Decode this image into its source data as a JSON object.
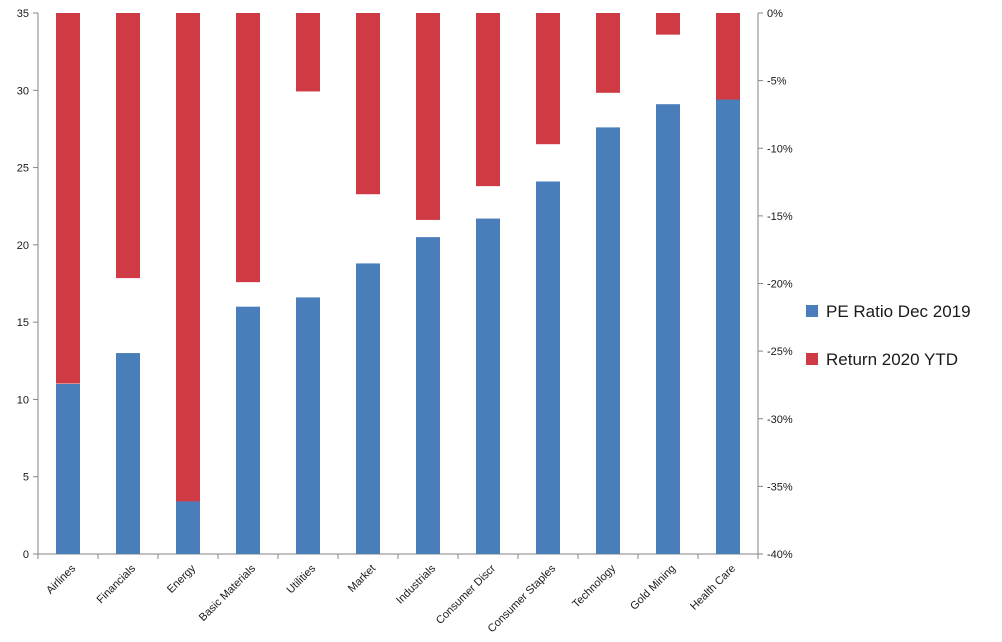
{
  "chart_data": {
    "type": "bar",
    "title": "",
    "xlabel": "",
    "categories": [
      "Airlines",
      "Financials",
      "Energy",
      "Basic Materials",
      "Utilities",
      "Market",
      "Industrials",
      "Consumer Discr",
      "Consumer Staples",
      "Technology",
      "Gold Mining",
      "Health Care"
    ],
    "series": [
      {
        "name": "PE Ratio Dec 2019",
        "axis": "left",
        "color": "#4a7ebb",
        "values": [
          11.0,
          13.0,
          3.4,
          16.0,
          16.6,
          18.8,
          20.5,
          21.7,
          24.1,
          27.6,
          29.1,
          29.4
        ]
      },
      {
        "name": "Return 2020 YTD",
        "axis": "right",
        "color": "#cf3a44",
        "values": [
          -27.4,
          -19.6,
          -36.2,
          -19.9,
          -5.8,
          -13.4,
          -15.3,
          -12.8,
          -9.7,
          -5.9,
          -1.6,
          -6.5
        ]
      }
    ],
    "y_left": {
      "ylim": [
        0,
        35
      ],
      "ticks": [
        0,
        5,
        10,
        15,
        20,
        25,
        30,
        35
      ],
      "ylabel": ""
    },
    "y_right": {
      "ylim": [
        -40,
        0
      ],
      "ticks": [
        0,
        -5,
        -10,
        -15,
        -20,
        -25,
        -30,
        -35,
        -40
      ],
      "tick_labels": [
        "0%",
        "-5%",
        "-10%",
        "-15%",
        "-20%",
        "-25%",
        "-30%",
        "-35%",
        "-40%"
      ],
      "ylabel": ""
    },
    "grid": false,
    "legend": {
      "position": "right"
    }
  }
}
